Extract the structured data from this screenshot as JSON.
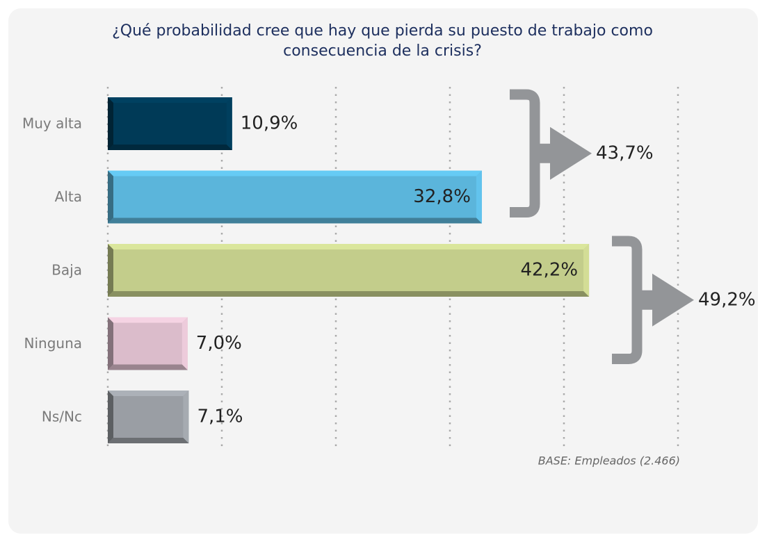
{
  "chart_data": {
    "type": "bar",
    "orientation": "horizontal",
    "title": "¿Qué probabilidad cree que hay que pierda su puesto de trabajo como consecuencia de la crisis?",
    "categories": [
      "Muy alta",
      "Alta",
      "Baja",
      "Ninguna",
      "Ns/Nc"
    ],
    "values": [
      10.9,
      32.8,
      42.2,
      7.0,
      7.1
    ],
    "value_labels": [
      "10,9%",
      "32,8%",
      "42,2%",
      "7,0%",
      "7,1%"
    ],
    "colors": [
      "#003a57",
      "#5bb5db",
      "#c3cd8b",
      "#dbbccb",
      "#9a9ea4"
    ],
    "xlim": [
      0,
      50
    ],
    "xticks": [
      0,
      10,
      20,
      30,
      40,
      50
    ],
    "grid": true,
    "annotations": [
      {
        "value": 43.7,
        "value_label": "43,7%"
      },
      {
        "value": 49.2,
        "value_label": "49,2%"
      }
    ],
    "footnote": "BASE: Empleados (2.466)"
  }
}
